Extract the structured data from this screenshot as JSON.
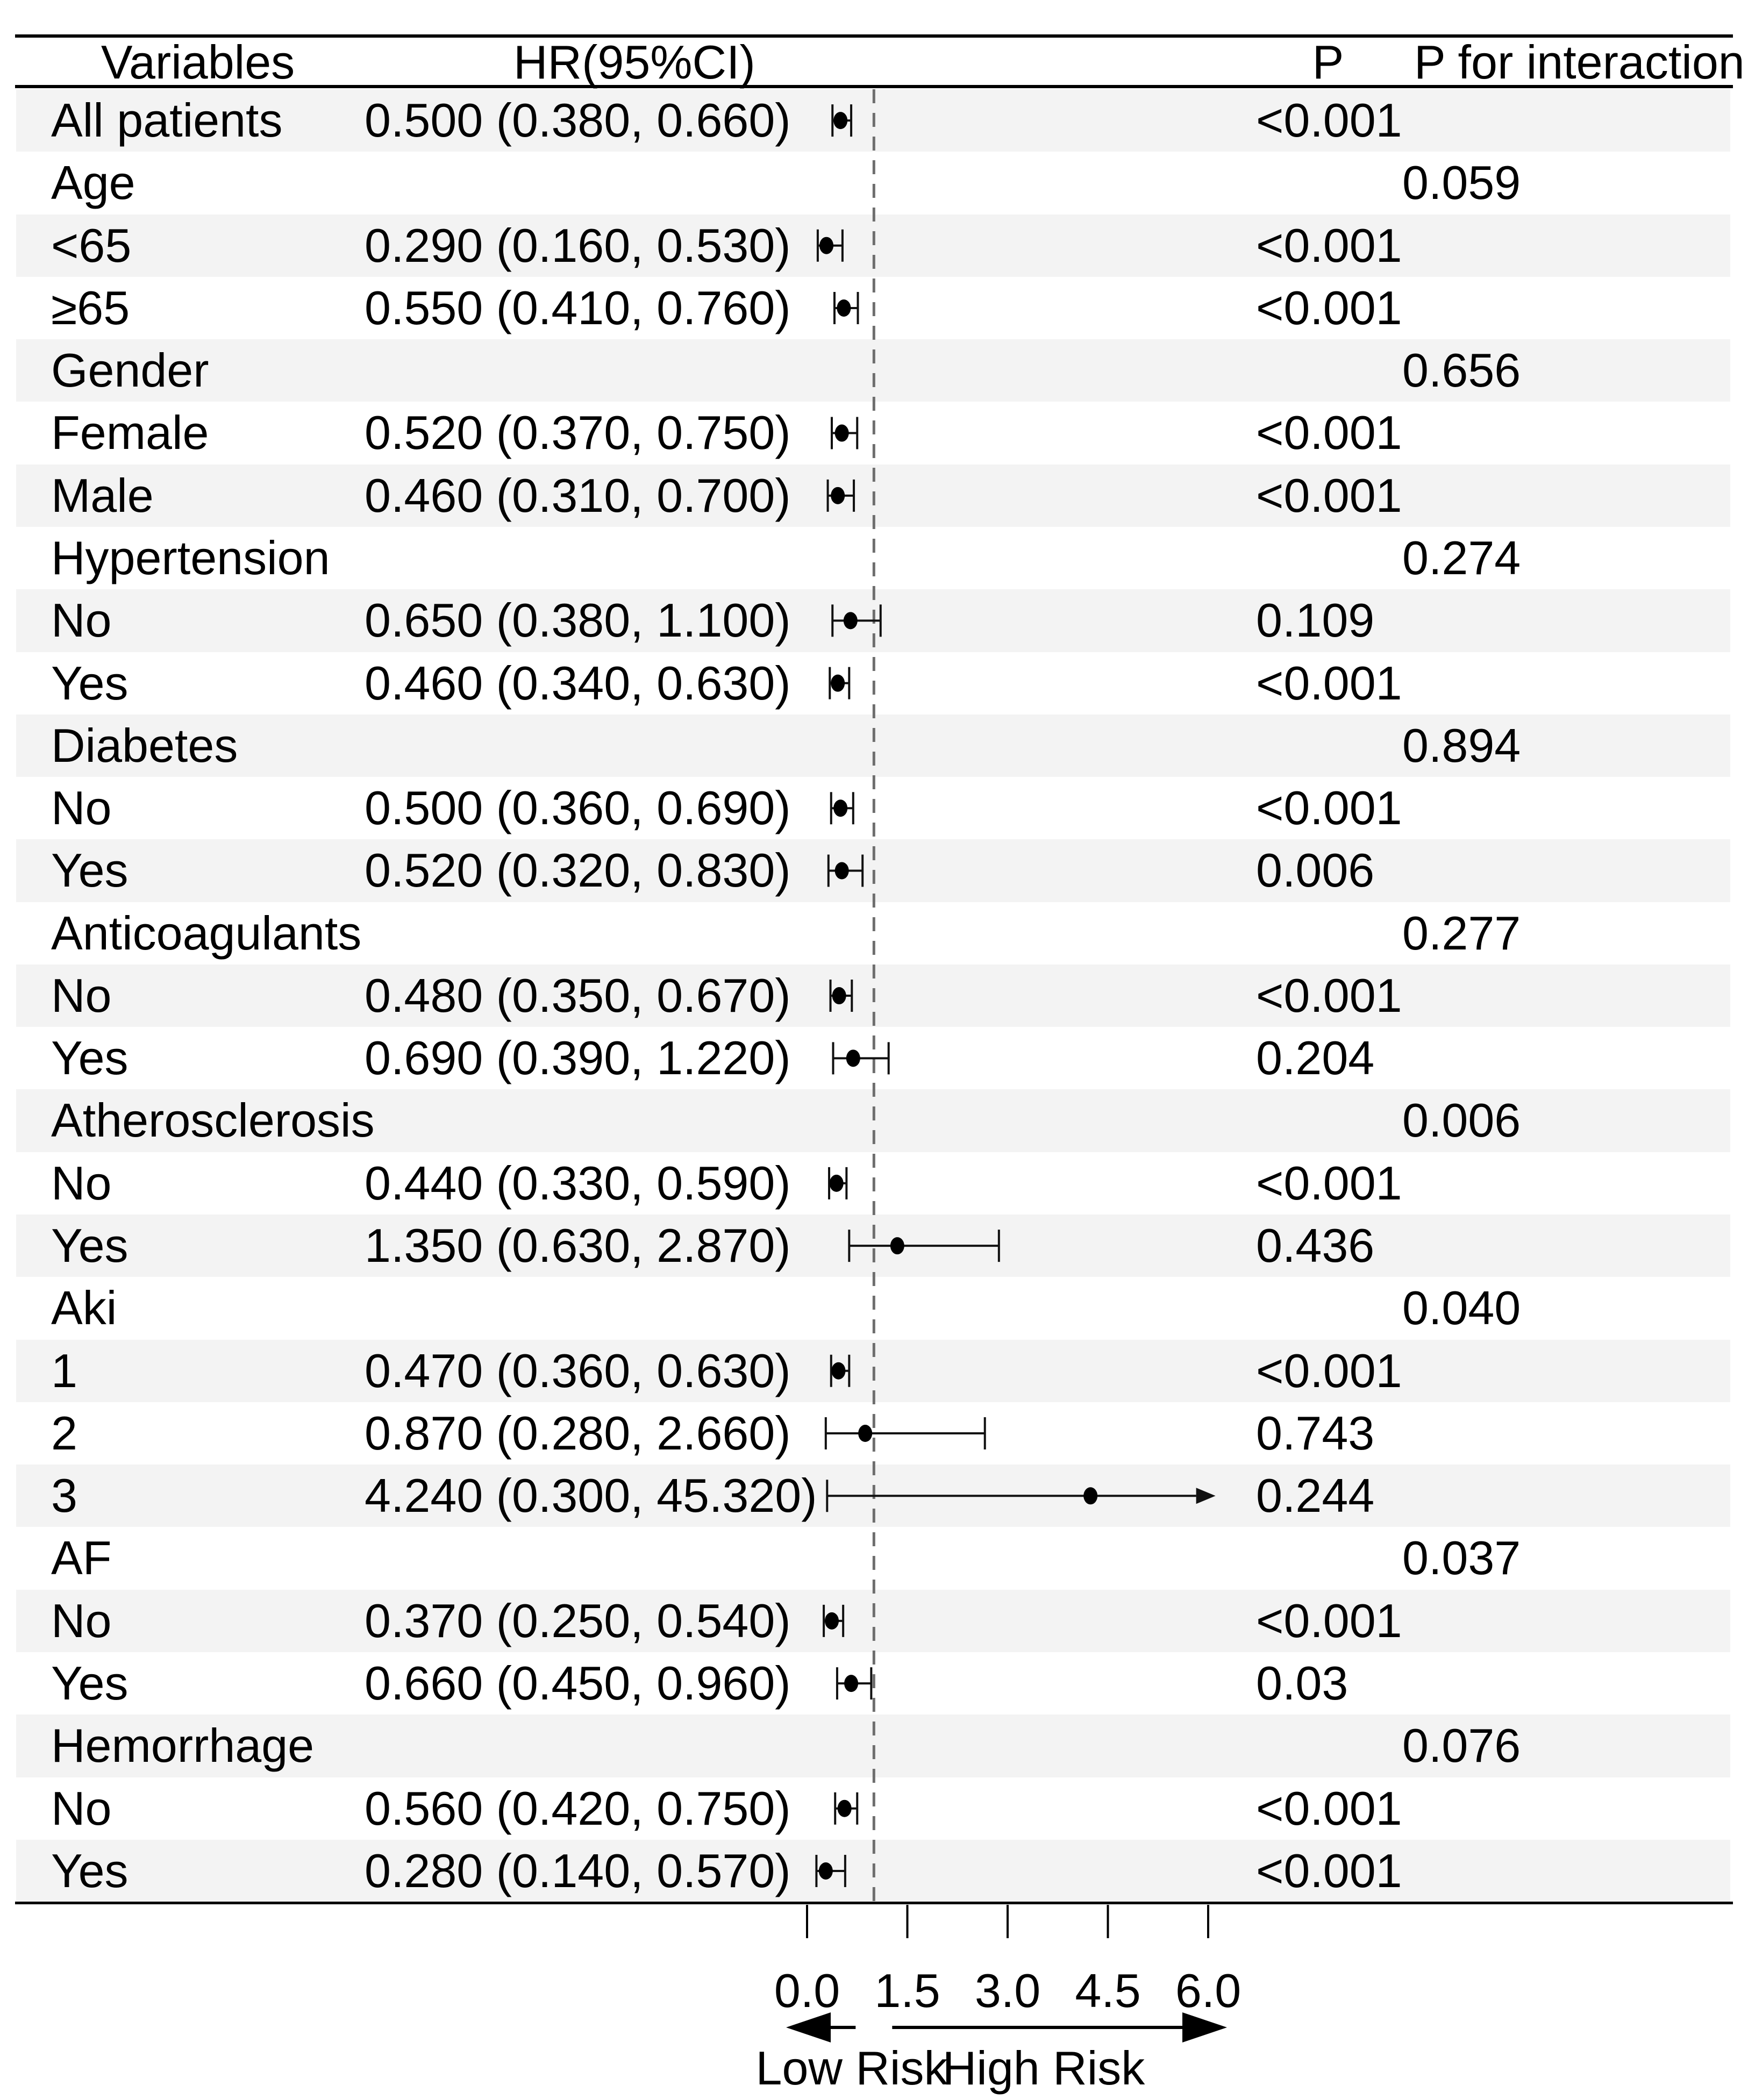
{
  "header": {
    "variables": "Variables",
    "hr_ci": "HR(95%CI)",
    "p": "P",
    "p_interaction": "P for interaction"
  },
  "chart_data": {
    "type": "scatter",
    "subtype": "forest-plot",
    "title": "",
    "xlabel": "",
    "xlim": [
      0.0,
      6.0
    ],
    "x_tick_values": [
      0.0,
      1.5,
      3.0,
      4.5,
      6.0
    ],
    "x_tick_labels": [
      "0.0",
      "1.5",
      "3.0",
      "4.5",
      "6.0"
    ],
    "reference_line_x": 1.0,
    "grid": false,
    "arrow_labels": {
      "left": "Low Risk",
      "right": "High Risk"
    },
    "rows": [
      {
        "label": "All patients",
        "hr_text": "0.500 (0.380, 0.660)",
        "est": 0.5,
        "lo": 0.38,
        "hi": 0.66,
        "p": "<0.001",
        "p_int": ""
      },
      {
        "label": "Age",
        "hr_text": "",
        "est": null,
        "lo": null,
        "hi": null,
        "p": "",
        "p_int": "0.059"
      },
      {
        "label": "<65",
        "hr_text": "0.290 (0.160, 0.530)",
        "est": 0.29,
        "lo": 0.16,
        "hi": 0.53,
        "p": "<0.001",
        "p_int": ""
      },
      {
        "label": "≥65",
        "hr_text": "0.550 (0.410, 0.760)",
        "est": 0.55,
        "lo": 0.41,
        "hi": 0.76,
        "p": "<0.001",
        "p_int": ""
      },
      {
        "label": "Gender",
        "hr_text": "",
        "est": null,
        "lo": null,
        "hi": null,
        "p": "",
        "p_int": "0.656"
      },
      {
        "label": "Female",
        "hr_text": "0.520 (0.370, 0.750)",
        "est": 0.52,
        "lo": 0.37,
        "hi": 0.75,
        "p": "<0.001",
        "p_int": ""
      },
      {
        "label": "Male",
        "hr_text": "0.460 (0.310, 0.700)",
        "est": 0.46,
        "lo": 0.31,
        "hi": 0.7,
        "p": "<0.001",
        "p_int": ""
      },
      {
        "label": "Hypertension",
        "hr_text": "",
        "est": null,
        "lo": null,
        "hi": null,
        "p": "",
        "p_int": "0.274"
      },
      {
        "label": "No",
        "hr_text": "0.650 (0.380, 1.100)",
        "est": 0.65,
        "lo": 0.38,
        "hi": 1.1,
        "p": "0.109",
        "p_int": ""
      },
      {
        "label": "Yes",
        "hr_text": "0.460 (0.340, 0.630)",
        "est": 0.46,
        "lo": 0.34,
        "hi": 0.63,
        "p": "<0.001",
        "p_int": ""
      },
      {
        "label": "Diabetes",
        "hr_text": "",
        "est": null,
        "lo": null,
        "hi": null,
        "p": "",
        "p_int": "0.894"
      },
      {
        "label": "No",
        "hr_text": "0.500 (0.360, 0.690)",
        "est": 0.5,
        "lo": 0.36,
        "hi": 0.69,
        "p": "<0.001",
        "p_int": ""
      },
      {
        "label": "Yes",
        "hr_text": "0.520 (0.320, 0.830)",
        "est": 0.52,
        "lo": 0.32,
        "hi": 0.83,
        "p": "0.006",
        "p_int": ""
      },
      {
        "label": "Anticoagulants",
        "hr_text": "",
        "est": null,
        "lo": null,
        "hi": null,
        "p": "",
        "p_int": "0.277"
      },
      {
        "label": "No",
        "hr_text": "0.480 (0.350, 0.670)",
        "est": 0.48,
        "lo": 0.35,
        "hi": 0.67,
        "p": "<0.001",
        "p_int": ""
      },
      {
        "label": "Yes",
        "hr_text": "0.690 (0.390, 1.220)",
        "est": 0.69,
        "lo": 0.39,
        "hi": 1.22,
        "p": "0.204",
        "p_int": ""
      },
      {
        "label": "Atherosclerosis",
        "hr_text": "",
        "est": null,
        "lo": null,
        "hi": null,
        "p": "",
        "p_int": "0.006"
      },
      {
        "label": "No",
        "hr_text": "0.440 (0.330, 0.590)",
        "est": 0.44,
        "lo": 0.33,
        "hi": 0.59,
        "p": "<0.001",
        "p_int": ""
      },
      {
        "label": "Yes",
        "hr_text": "1.350 (0.630, 2.870)",
        "est": 1.35,
        "lo": 0.63,
        "hi": 2.87,
        "p": "0.436",
        "p_int": ""
      },
      {
        "label": "Aki",
        "hr_text": "",
        "est": null,
        "lo": null,
        "hi": null,
        "p": "",
        "p_int": "0.040"
      },
      {
        "label": "1",
        "hr_text": "0.470 (0.360, 0.630)",
        "est": 0.47,
        "lo": 0.36,
        "hi": 0.63,
        "p": "<0.001",
        "p_int": ""
      },
      {
        "label": "2",
        "hr_text": "0.870 (0.280, 2.660)",
        "est": 0.87,
        "lo": 0.28,
        "hi": 2.66,
        "p": "0.743",
        "p_int": ""
      },
      {
        "label": "3",
        "hr_text": "4.240 (0.300, 45.320)",
        "est": 4.24,
        "lo": 0.3,
        "hi": 45.32,
        "p": "0.244",
        "p_int": ""
      },
      {
        "label": "AF",
        "hr_text": "",
        "est": null,
        "lo": null,
        "hi": null,
        "p": "",
        "p_int": "0.037"
      },
      {
        "label": "No",
        "hr_text": "0.370 (0.250, 0.540)",
        "est": 0.37,
        "lo": 0.25,
        "hi": 0.54,
        "p": "<0.001",
        "p_int": ""
      },
      {
        "label": "Yes",
        "hr_text": "0.660 (0.450, 0.960)",
        "est": 0.66,
        "lo": 0.45,
        "hi": 0.96,
        "p": "0.03",
        "p_int": ""
      },
      {
        "label": "Hemorrhage",
        "hr_text": "",
        "est": null,
        "lo": null,
        "hi": null,
        "p": "",
        "p_int": "0.076"
      },
      {
        "label": "No",
        "hr_text": "0.560 (0.420, 0.750)",
        "est": 0.56,
        "lo": 0.42,
        "hi": 0.75,
        "p": "<0.001",
        "p_int": ""
      },
      {
        "label": "Yes",
        "hr_text": "0.280 (0.140, 0.570)",
        "est": 0.28,
        "lo": 0.14,
        "hi": 0.57,
        "p": "<0.001",
        "p_int": ""
      }
    ]
  },
  "colors": {
    "stripe": "#f3f3f3",
    "marker": "#000000",
    "reference_line": "#6e6e6e",
    "rule": "#000000",
    "text": "#000000"
  }
}
